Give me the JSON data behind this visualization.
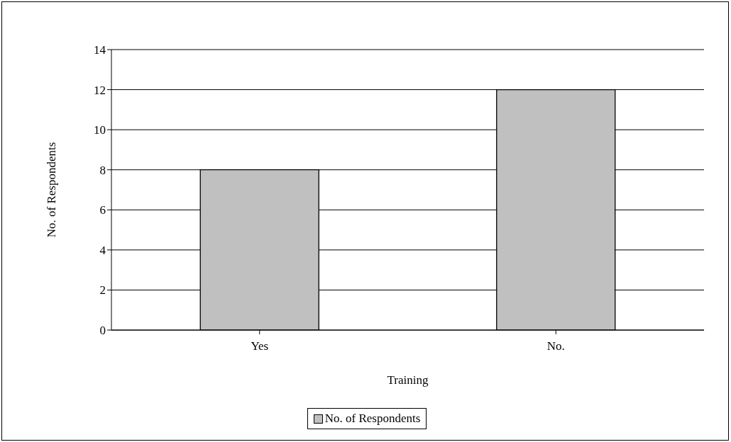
{
  "chart_data": {
    "type": "bar",
    "xlabel": "Training",
    "ylabel": "No. of Respondents",
    "categories": [
      "Yes",
      "No."
    ],
    "series": [
      {
        "name": "No. of Respondents",
        "color": "#c0c0c0",
        "values": [
          8,
          12
        ]
      }
    ],
    "ylim": [
      0,
      14
    ],
    "yticks": [
      0,
      2,
      4,
      6,
      8,
      10,
      12,
      14
    ],
    "grid": "y",
    "legend": "bottom"
  }
}
